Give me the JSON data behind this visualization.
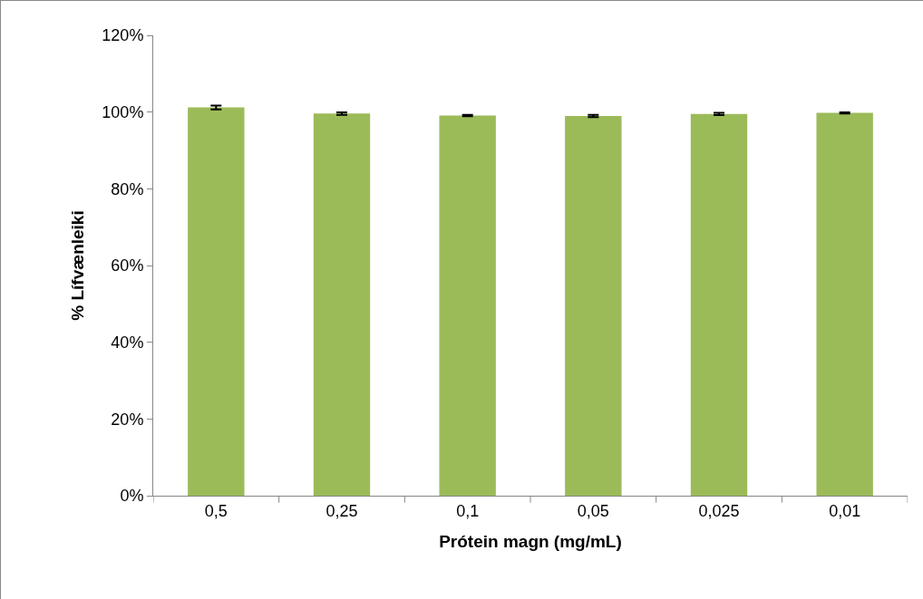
{
  "chart_data": {
    "type": "bar",
    "xlabel": "Prótein magn (mg/mL)",
    "ylabel": "% Lífvænleiki",
    "categories": [
      "0,5",
      "0,25",
      "0,1",
      "0,05",
      "0,025",
      "0,01"
    ],
    "values": [
      101.2,
      99.6,
      99.1,
      99.0,
      99.5,
      99.8
    ],
    "errors": [
      0.5,
      0.3,
      0.2,
      0.3,
      0.3,
      0.15
    ],
    "color": "#9bbb59",
    "ylim": [
      0,
      120
    ],
    "yticks": [
      {
        "value": 0,
        "label": "0%"
      },
      {
        "value": 20,
        "label": "20%"
      },
      {
        "value": 40,
        "label": "40%"
      },
      {
        "value": 60,
        "label": "60%"
      },
      {
        "value": 80,
        "label": "80%"
      },
      {
        "value": 100,
        "label": "100%"
      },
      {
        "value": 120,
        "label": "120%"
      }
    ],
    "grid": false
  }
}
